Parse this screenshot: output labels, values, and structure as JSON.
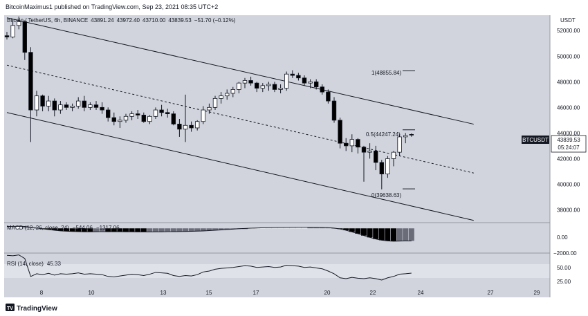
{
  "header": {
    "publisher_line": "BitcoinMaximus1 published on TradingView.com, Sep 23, 2021 08:35 UTC+2"
  },
  "symbol": {
    "name": "Bitcoin / TetherUS",
    "interval": "6h",
    "exchange": "BINANCE",
    "ohlc": [
      "43891.24",
      "43972.40",
      "43710.00",
      "43839.53"
    ],
    "change": "−51.70 (−0.12%)",
    "currency": "USDT",
    "last_price_label": "43839.53",
    "ticker_label": "BTCUSDT",
    "countdown": "05:24:07"
  },
  "fib_labels": {
    "level_1": "1(48855.84)",
    "level_05": "0.5(44247.24)",
    "level_0": "0(39638.63)"
  },
  "macd": {
    "legend": "MACD (12, 26, close, 24)",
    "value1": "−544.06",
    "value2": "−1317.06",
    "ticks": [
      "0.00",
      "−2000.00"
    ]
  },
  "rsi": {
    "legend": "RSI (14, close)",
    "value": "45.33",
    "ticks": [
      "50.00",
      "25.00"
    ]
  },
  "footer": {
    "logo_text": "TradingView"
  },
  "colors": {
    "background": "#d1d4dc",
    "candle_up": "#ffffff",
    "candle_down": "#000000",
    "rsi_band": "#dfe2e8"
  },
  "chart_data": {
    "type": "candlestick",
    "y_ticks": [
      "52000.00",
      "50000.00",
      "48000.00",
      "46000.00",
      "44000.00",
      "42000.00",
      "40000.00",
      "38000.00"
    ],
    "ylim": [
      37000,
      53200
    ],
    "x_ticks": [
      "8",
      "10",
      "13",
      "15",
      "17",
      "20",
      "22",
      "24",
      "27",
      "29"
    ],
    "candles": [
      [
        51600,
        51900,
        51300,
        51500
      ],
      [
        51500,
        52800,
        51400,
        52400
      ],
      [
        52400,
        53100,
        52100,
        52700
      ],
      [
        52700,
        52800,
        49700,
        50300
      ],
      [
        50300,
        50700,
        43300,
        45800
      ],
      [
        45800,
        47300,
        45300,
        46900
      ],
      [
        46900,
        47000,
        45700,
        46100
      ],
      [
        46100,
        46900,
        45700,
        46500
      ],
      [
        46500,
        46700,
        45300,
        45800
      ],
      [
        45800,
        46500,
        45500,
        46200
      ],
      [
        46200,
        46400,
        45800,
        46000
      ],
      [
        46000,
        46300,
        45700,
        46100
      ],
      [
        46100,
        46800,
        45900,
        46500
      ],
      [
        46500,
        46900,
        45700,
        46000
      ],
      [
        46000,
        46400,
        45800,
        46200
      ],
      [
        46200,
        46500,
        45800,
        46000
      ],
      [
        46000,
        46400,
        45500,
        45800
      ],
      [
        45800,
        46000,
        44900,
        45200
      ],
      [
        45200,
        45600,
        44600,
        44900
      ],
      [
        44900,
        45300,
        44400,
        45000
      ],
      [
        45000,
        45500,
        44800,
        45300
      ],
      [
        45300,
        45700,
        45000,
        45500
      ],
      [
        45500,
        45800,
        45100,
        45400
      ],
      [
        45400,
        45600,
        44800,
        44900
      ],
      [
        44900,
        45400,
        44700,
        45300
      ],
      [
        45300,
        46000,
        45100,
        45800
      ],
      [
        45800,
        46200,
        45300,
        45600
      ],
      [
        45600,
        45900,
        45200,
        45500
      ],
      [
        45500,
        45700,
        44600,
        44700
      ],
      [
        44700,
        45100,
        43700,
        44300
      ],
      [
        44300,
        47000,
        43300,
        44600
      ],
      [
        44600,
        44900,
        44100,
        44400
      ],
      [
        44400,
        45000,
        44200,
        44900
      ],
      [
        44900,
        46100,
        44700,
        45800
      ],
      [
        45800,
        46300,
        45500,
        46000
      ],
      [
        46000,
        46900,
        45800,
        46700
      ],
      [
        46700,
        47200,
        46300,
        46900
      ],
      [
        46900,
        47400,
        46600,
        47100
      ],
      [
        47100,
        47600,
        46800,
        47400
      ],
      [
        47400,
        48000,
        47100,
        47900
      ],
      [
        47900,
        48300,
        47500,
        48100
      ],
      [
        48100,
        48400,
        47700,
        47900
      ],
      [
        47900,
        48000,
        47200,
        47500
      ],
      [
        47500,
        47900,
        47200,
        47700
      ],
      [
        47700,
        48000,
        47300,
        47800
      ],
      [
        47800,
        48000,
        47200,
        47400
      ],
      [
        47400,
        47800,
        47100,
        47500
      ],
      [
        47500,
        48800,
        47300,
        48600
      ],
      [
        48600,
        48900,
        48300,
        48500
      ],
      [
        48500,
        48700,
        48100,
        48300
      ],
      [
        48300,
        48500,
        47700,
        47900
      ],
      [
        47900,
        48200,
        47500,
        48000
      ],
      [
        48000,
        48200,
        47400,
        47600
      ],
      [
        47600,
        47800,
        47000,
        47200
      ],
      [
        47200,
        47400,
        46300,
        46500
      ],
      [
        46500,
        46800,
        44800,
        45000
      ],
      [
        45000,
        45200,
        42800,
        43200
      ],
      [
        43200,
        43600,
        42600,
        43000
      ],
      [
        43000,
        43900,
        42500,
        43500
      ],
      [
        43500,
        43600,
        42400,
        42900
      ],
      [
        42900,
        43000,
        40200,
        42500
      ],
      [
        42500,
        43200,
        42000,
        42600
      ],
      [
        42600,
        43000,
        41100,
        41700
      ],
      [
        41700,
        41900,
        39600,
        40800
      ],
      [
        40800,
        42200,
        40500,
        42000
      ],
      [
        42000,
        42600,
        41400,
        42500
      ],
      [
        42500,
        43900,
        42200,
        43700
      ],
      [
        43700,
        44000,
        43200,
        43800
      ],
      [
        43891.24,
        43972.4,
        43710,
        43839.53
      ]
    ],
    "channel": {
      "upper": [
        [
          0,
          53000
        ],
        [
          68,
          45800
        ]
      ],
      "lower": [
        [
          0,
          45600
        ],
        [
          68,
          38300
        ]
      ],
      "mid": [
        [
          0,
          49300
        ],
        [
          68,
          42000
        ]
      ]
    },
    "fib_levels": [
      48855.84,
      44247.24,
      39638.63
    ],
    "macd_ylim": [
      -2600,
      600
    ],
    "macd_signal": [
      200,
      210,
      220,
      200,
      120,
      40,
      -50,
      -130,
      -200,
      -260,
      -300,
      -330,
      -350,
      -360,
      -360,
      -355,
      -350,
      -350,
      -350,
      -355,
      -360,
      -365,
      -370,
      -372,
      -370,
      -365,
      -360,
      -350,
      -345,
      -340,
      -330,
      -310,
      -290,
      -270,
      -240,
      -200,
      -160,
      -120,
      -80,
      -40,
      -10,
      20,
      40,
      60,
      75,
      90,
      100,
      110,
      120,
      125,
      128,
      125,
      120,
      110,
      80,
      30,
      -60,
      -200,
      -370,
      -560,
      -760,
      -950,
      -1120,
      -1250,
      -1320,
      -1350,
      -1340,
      -1320,
      -1317.06
    ],
    "rsi_ylim": [
      10,
      90
    ],
    "rsi_values": [
      85,
      84,
      86,
      78,
      38,
      44,
      42,
      45,
      41,
      44,
      43,
      44,
      46,
      43,
      44,
      43,
      42,
      38,
      37,
      39,
      41,
      43,
      42,
      40,
      43,
      47,
      46,
      45,
      40,
      38,
      40,
      39,
      42,
      48,
      50,
      54,
      56,
      57,
      58,
      60,
      62,
      61,
      58,
      59,
      60,
      58,
      59,
      63,
      62,
      61,
      58,
      59,
      57,
      55,
      50,
      44,
      35,
      33,
      36,
      34,
      33,
      35,
      33,
      30,
      35,
      38,
      43,
      44,
      45.33
    ]
  }
}
